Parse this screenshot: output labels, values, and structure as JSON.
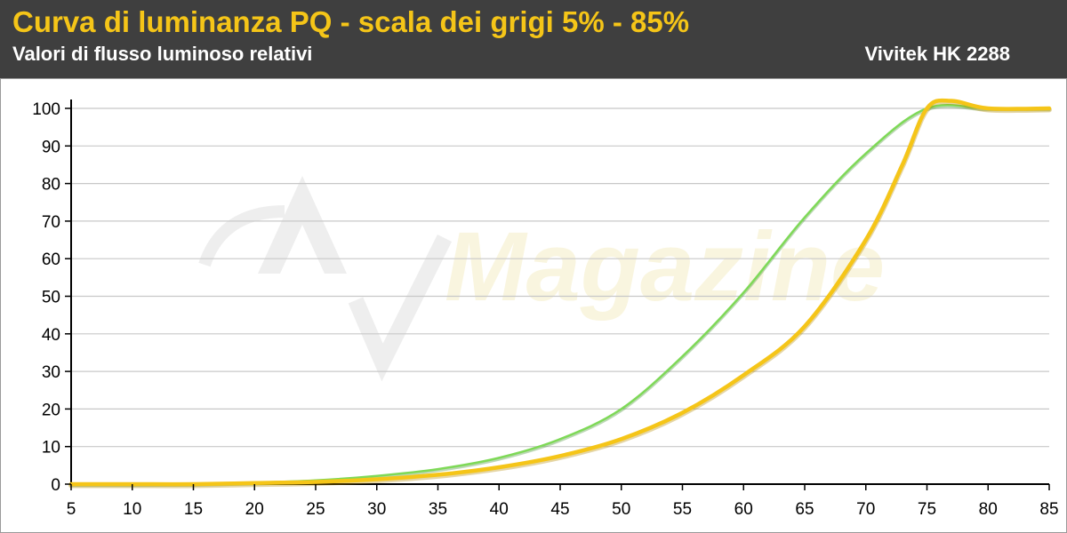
{
  "header": {
    "title": "Curva di luminanza PQ - scala dei grigi 5% - 85%",
    "subtitle": "Valori di flusso luminoso relativi",
    "model": "Vivitek HK 2288"
  },
  "watermark": {
    "text": "Magazine",
    "icon": "av-magazine-logo-icon"
  },
  "colors": {
    "header_bg": "#3f3f3f",
    "title": "#f5c518",
    "reference": "#7ed957",
    "measured": "#f5c518",
    "grid": "#c8c8c8"
  },
  "chart_data": {
    "type": "line",
    "title": "Curva di luminanza PQ - scala dei grigi 5% - 85%",
    "subtitle": "Valori di flusso luminoso relativi",
    "xlabel": "",
    "ylabel": "",
    "xlim": [
      5,
      85
    ],
    "ylim": [
      0,
      100
    ],
    "x_ticks": [
      5,
      10,
      15,
      20,
      25,
      30,
      35,
      40,
      45,
      50,
      55,
      60,
      65,
      70,
      75,
      80,
      85
    ],
    "y_ticks": [
      0,
      10,
      20,
      30,
      40,
      50,
      60,
      70,
      80,
      90,
      100
    ],
    "grid": true,
    "legend": "none",
    "series": [
      {
        "color": "#7ed957",
        "x": [
          5,
          10,
          15,
          20,
          25,
          30,
          35,
          40,
          45,
          50,
          55,
          60,
          65,
          70,
          75,
          80,
          85
        ],
        "y": [
          0,
          0,
          0.1,
          0.4,
          1,
          2.2,
          4,
          7,
          12,
          20,
          34,
          51,
          71,
          88,
          100,
          100,
          100
        ]
      },
      {
        "color": "#f5c518",
        "x": [
          5,
          10,
          15,
          20,
          25,
          30,
          35,
          40,
          45,
          50,
          55,
          60,
          65,
          70,
          73,
          75,
          77,
          80,
          85
        ],
        "y": [
          0,
          0,
          0,
          0.3,
          0.6,
          1.3,
          2.5,
          4.5,
          7.5,
          12,
          19,
          29,
          42,
          65,
          85,
          100,
          102,
          100,
          100
        ]
      }
    ]
  }
}
